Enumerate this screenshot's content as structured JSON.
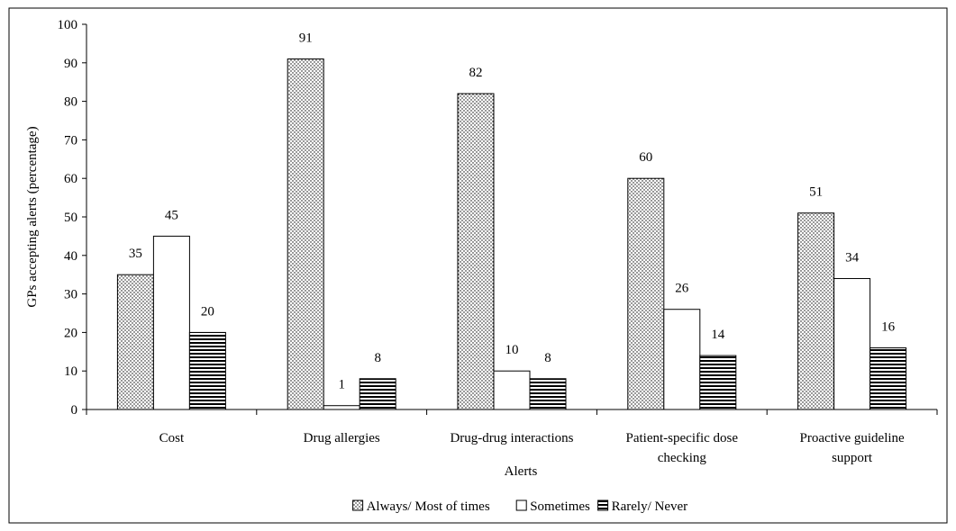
{
  "chart_data": {
    "type": "bar",
    "title": "",
    "xlabel": "Alerts",
    "ylabel": "GPs accepting alerts (percentage)",
    "ylim": [
      0,
      100
    ],
    "yticks": [
      0,
      10,
      20,
      30,
      40,
      50,
      60,
      70,
      80,
      90,
      100
    ],
    "grid": false,
    "legend_position": "bottom",
    "categories": [
      [
        "Cost"
      ],
      [
        "Drug allergies"
      ],
      [
        "Drug-drug interactions"
      ],
      [
        "Patient-specific dose",
        "checking"
      ],
      [
        "Proactive guideline",
        "support"
      ]
    ],
    "series": [
      {
        "name": "Always/ Most of times",
        "pattern": "dots",
        "values": [
          35,
          91,
          82,
          60,
          51
        ]
      },
      {
        "name": "Sometimes",
        "pattern": "empty",
        "values": [
          45,
          1,
          10,
          26,
          34
        ]
      },
      {
        "name": "Rarely/ Never",
        "pattern": "hlines",
        "values": [
          20,
          8,
          8,
          14,
          16
        ]
      }
    ]
  }
}
